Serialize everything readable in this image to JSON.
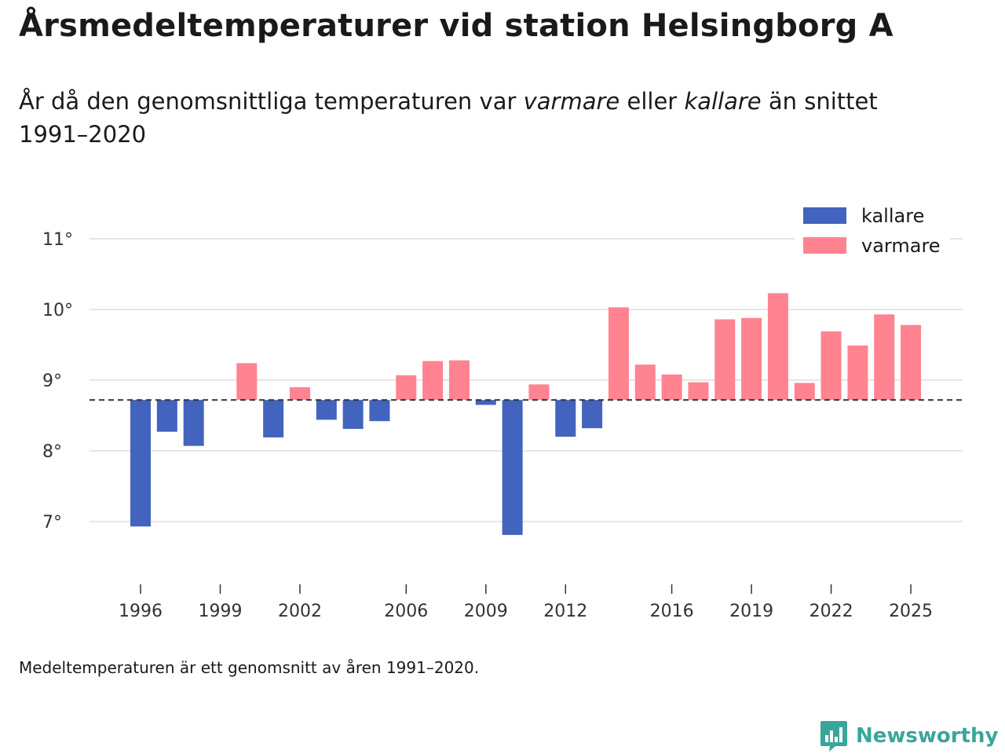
{
  "title": "Årsmedeltemperaturer vid station Helsingborg A",
  "subtitle": {
    "part1": "År då den genomsnittliga temperaturen var ",
    "warmer": "varmare",
    "part2": " eller ",
    "colder": "kallare",
    "part3": " än snittet 1991–2020"
  },
  "footnote": "Medeltemperaturen är ett genomsnitt av åren 1991–2020.",
  "brand": "Newsworthy",
  "chart_data": {
    "type": "bar",
    "baseline": 8.72,
    "ylim": [
      6.5,
      11.3
    ],
    "yticks": [
      7,
      8,
      9,
      10,
      11
    ],
    "ytick_suffix": "°",
    "xlim": [
      1995,
      2026
    ],
    "xticks": [
      1996,
      1999,
      2002,
      2006,
      2009,
      2012,
      2016,
      2019,
      2022,
      2025
    ],
    "legend": [
      {
        "label": "kallare",
        "color": "#4263be"
      },
      {
        "label": "varmare",
        "color": "#ff8391"
      }
    ],
    "colors": {
      "colder": "#4263be",
      "warmer": "#ff8391",
      "grid": "#dddddd",
      "baseline": "#333333"
    },
    "years": [
      1996,
      1997,
      1998,
      1999,
      2000,
      2001,
      2002,
      2003,
      2004,
      2005,
      2006,
      2007,
      2008,
      2009,
      2010,
      2011,
      2012,
      2013,
      2014,
      2015,
      2016,
      2017,
      2018,
      2019,
      2020,
      2021,
      2022,
      2023,
      2024,
      2025
    ],
    "values": [
      6.93,
      8.27,
      8.07,
      8.72,
      9.24,
      8.19,
      8.9,
      8.44,
      8.31,
      8.42,
      9.07,
      9.27,
      9.28,
      8.65,
      6.81,
      8.94,
      8.2,
      8.32,
      10.03,
      9.22,
      9.08,
      8.97,
      9.86,
      9.88,
      10.23,
      8.96,
      9.69,
      9.49,
      9.93,
      9.78
    ]
  }
}
